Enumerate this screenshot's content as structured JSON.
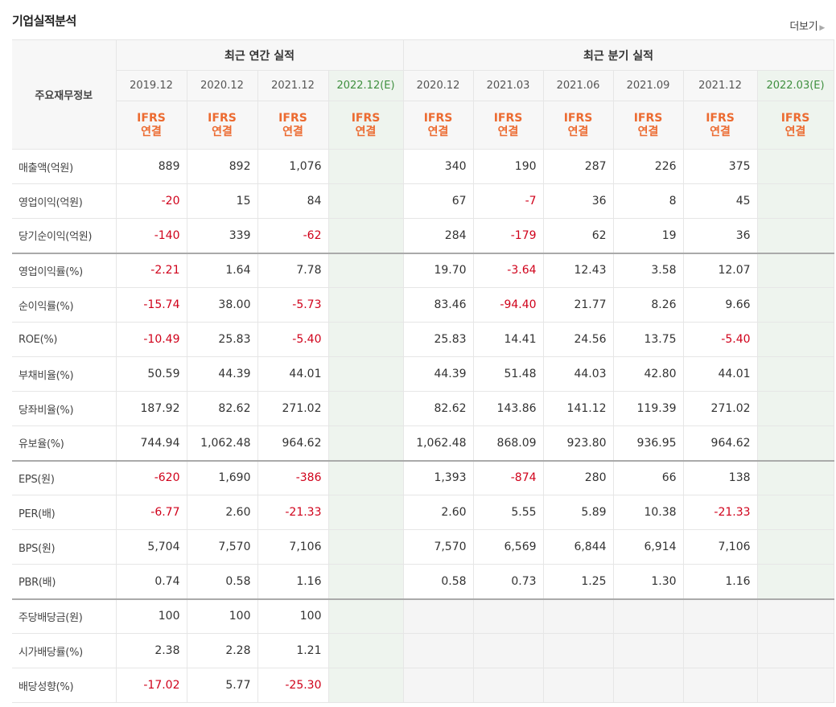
{
  "header": {
    "title": "기업실적분석",
    "more_label": "더보기"
  },
  "table": {
    "corner_label": "주요재무정보",
    "annual_group_label": "최근 연간 실적",
    "quarter_group_label": "최근 분기 실적",
    "annual_periods": [
      "2019.12",
      "2020.12",
      "2021.12",
      "2022.12(E)"
    ],
    "quarter_periods": [
      "2020.12",
      "2021.03",
      "2021.06",
      "2021.09",
      "2021.12",
      "2022.03(E)"
    ],
    "ifrs_label": "IFRS",
    "consolidated_label": "연결",
    "rows": [
      {
        "label": "매출액(억원)",
        "annual": [
          "889",
          "892",
          "1,076",
          ""
        ],
        "quarter": [
          "340",
          "190",
          "287",
          "226",
          "375",
          ""
        ]
      },
      {
        "label": "영업이익(억원)",
        "annual": [
          "-20",
          "15",
          "84",
          ""
        ],
        "quarter": [
          "67",
          "-7",
          "36",
          "8",
          "45",
          ""
        ]
      },
      {
        "label": "당기순이익(억원)",
        "annual": [
          "-140",
          "339",
          "-62",
          ""
        ],
        "quarter": [
          "284",
          "-179",
          "62",
          "19",
          "36",
          ""
        ]
      },
      {
        "label": "영업이익률(%)",
        "annual": [
          "-2.21",
          "1.64",
          "7.78",
          ""
        ],
        "quarter": [
          "19.70",
          "-3.64",
          "12.43",
          "3.58",
          "12.07",
          ""
        ]
      },
      {
        "label": "순이익률(%)",
        "annual": [
          "-15.74",
          "38.00",
          "-5.73",
          ""
        ],
        "quarter": [
          "83.46",
          "-94.40",
          "21.77",
          "8.26",
          "9.66",
          ""
        ]
      },
      {
        "label": "ROE(%)",
        "annual": [
          "-10.49",
          "25.83",
          "-5.40",
          ""
        ],
        "quarter": [
          "25.83",
          "14.41",
          "24.56",
          "13.75",
          "-5.40",
          ""
        ]
      },
      {
        "label": "부채비율(%)",
        "annual": [
          "50.59",
          "44.39",
          "44.01",
          ""
        ],
        "quarter": [
          "44.39",
          "51.48",
          "44.03",
          "42.80",
          "44.01",
          ""
        ]
      },
      {
        "label": "당좌비율(%)",
        "annual": [
          "187.92",
          "82.62",
          "271.02",
          ""
        ],
        "quarter": [
          "82.62",
          "143.86",
          "141.12",
          "119.39",
          "271.02",
          ""
        ]
      },
      {
        "label": "유보율(%)",
        "annual": [
          "744.94",
          "1,062.48",
          "964.62",
          ""
        ],
        "quarter": [
          "1,062.48",
          "868.09",
          "923.80",
          "936.95",
          "964.62",
          ""
        ]
      },
      {
        "label": "EPS(원)",
        "annual": [
          "-620",
          "1,690",
          "-386",
          ""
        ],
        "quarter": [
          "1,393",
          "-874",
          "280",
          "66",
          "138",
          ""
        ]
      },
      {
        "label": "PER(배)",
        "annual": [
          "-6.77",
          "2.60",
          "-21.33",
          ""
        ],
        "quarter": [
          "2.60",
          "5.55",
          "5.89",
          "10.38",
          "-21.33",
          ""
        ]
      },
      {
        "label": "BPS(원)",
        "annual": [
          "5,704",
          "7,570",
          "7,106",
          ""
        ],
        "quarter": [
          "7,570",
          "6,569",
          "6,844",
          "6,914",
          "7,106",
          ""
        ]
      },
      {
        "label": "PBR(배)",
        "annual": [
          "0.74",
          "0.58",
          "1.16",
          ""
        ],
        "quarter": [
          "0.58",
          "0.73",
          "1.25",
          "1.30",
          "1.16",
          ""
        ]
      },
      {
        "label": "주당배당금(원)",
        "annual": [
          "100",
          "100",
          "100",
          ""
        ],
        "quarter": null
      },
      {
        "label": "시가배당률(%)",
        "annual": [
          "2.38",
          "2.28",
          "1.21",
          ""
        ],
        "quarter": null
      },
      {
        "label": "배당성향(%)",
        "annual": [
          "-17.02",
          "5.77",
          "-25.30",
          ""
        ],
        "quarter": null
      }
    ]
  },
  "colors": {
    "negative": "#d0021b",
    "ifrs": "#ec6b31",
    "estimate_bg": "#eef4ee",
    "estimate_text": "#3f8f3f"
  }
}
